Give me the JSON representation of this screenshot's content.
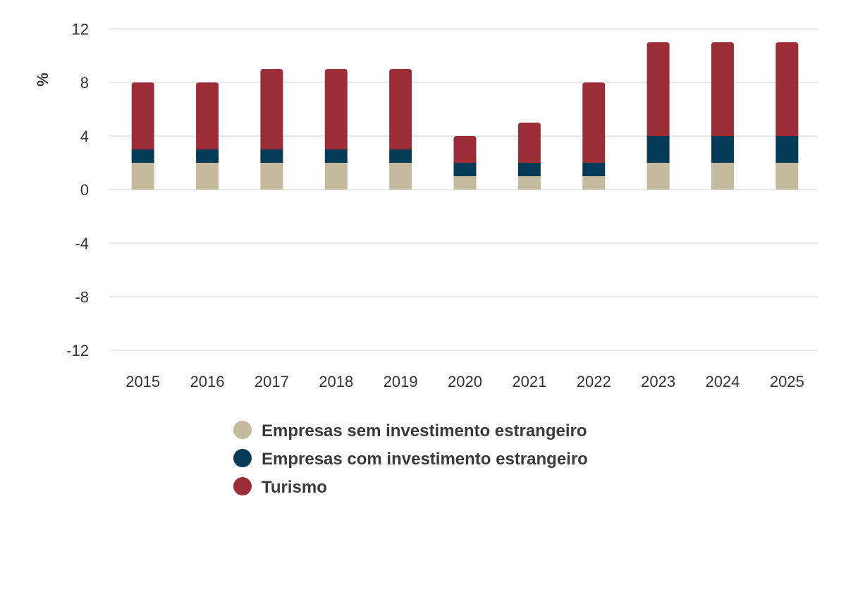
{
  "chart_data": {
    "type": "bar",
    "stacked": true,
    "title": "",
    "xlabel": "",
    "ylabel": "%",
    "ylim": [
      -12,
      12
    ],
    "yticks": [
      12,
      8,
      4,
      0,
      -4,
      -8,
      -12
    ],
    "grid": true,
    "legend_position": "bottom",
    "categories": [
      "2015",
      "2016",
      "2017",
      "2018",
      "2019",
      "2020",
      "2021",
      "2022",
      "2023",
      "2024",
      "2025"
    ],
    "series": [
      {
        "name": "Empresas sem investimento estrangeiro",
        "color": "#c5b99e",
        "values": [
          2,
          2,
          2,
          2,
          2,
          1,
          1,
          1,
          2,
          2,
          2
        ]
      },
      {
        "name": "Empresas com investimento estrangeiro",
        "color": "#053a57",
        "values": [
          1,
          1,
          1,
          1,
          1,
          1,
          1,
          1,
          2,
          2,
          2
        ]
      },
      {
        "name": "Turismo",
        "color": "#9b2d36",
        "values": [
          5,
          5,
          6,
          6,
          6,
          2,
          3,
          6,
          7,
          7,
          7
        ]
      }
    ]
  }
}
